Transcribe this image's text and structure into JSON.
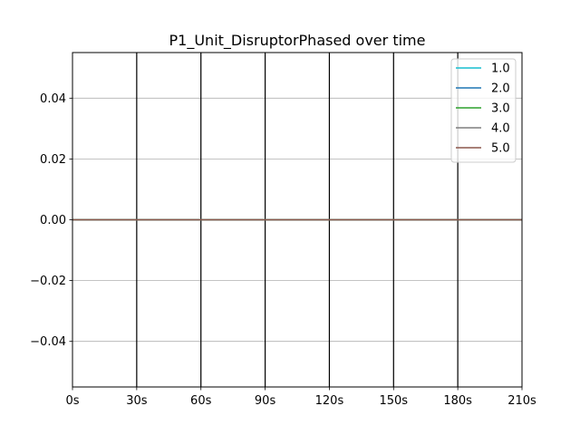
{
  "chart_data": {
    "type": "line",
    "title": "P1_Unit_DisruptorPhased over time",
    "xlabel": "",
    "ylabel": "",
    "x_ticks": [
      "0s",
      "30s",
      "60s",
      "90s",
      "120s",
      "150s",
      "180s",
      "210s"
    ],
    "x_tick_values": [
      0,
      30,
      60,
      90,
      120,
      150,
      180,
      210
    ],
    "xlim": [
      0,
      210
    ],
    "y_ticks": [
      "−0.04",
      "−0.02",
      "0.00",
      "0.02",
      "0.04"
    ],
    "y_tick_values": [
      -0.04,
      -0.02,
      0.0,
      0.02,
      0.04
    ],
    "ylim": [
      -0.055,
      0.055
    ],
    "grid": true,
    "vertical_lines_at": [
      30,
      60,
      90,
      120,
      150,
      180
    ],
    "legend_position": "top-right",
    "series": [
      {
        "name": "1.0",
        "color": "#17becf",
        "x": [
          0,
          210
        ],
        "values": [
          0,
          0
        ]
      },
      {
        "name": "2.0",
        "color": "#1f77b4",
        "x": [
          0,
          210
        ],
        "values": [
          0,
          0
        ]
      },
      {
        "name": "3.0",
        "color": "#2ca02c",
        "x": [
          0,
          210
        ],
        "values": [
          0,
          0
        ]
      },
      {
        "name": "4.0",
        "color": "#7f7f7f",
        "x": [
          0,
          210
        ],
        "values": [
          0,
          0
        ]
      },
      {
        "name": "5.0",
        "color": "#8c564b",
        "x": [
          0,
          210
        ],
        "values": [
          0,
          0
        ]
      }
    ]
  }
}
